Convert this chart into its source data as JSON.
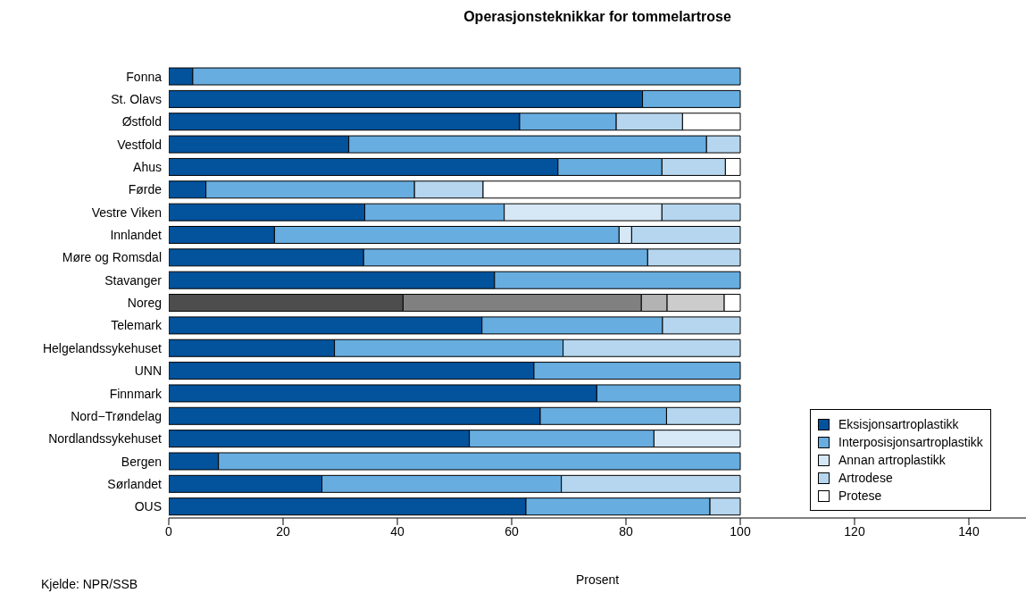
{
  "chart_data": {
    "type": "bar",
    "orientation": "horizontal",
    "stacked": true,
    "title": "Operasjonsteknikkar for tommelartrose",
    "xlabel": "Prosent",
    "annotations": [
      "Kjelde: NPR/SSB"
    ],
    "categories": [
      "Fonna",
      "St. Olavs",
      "Østfold",
      "Vestfold",
      "Ahus",
      "Førde",
      "Vestre Viken",
      "Innlandet",
      "Møre og Romsdal",
      "Stavanger",
      "Noreg",
      "Telemark",
      "Helgelandssykehuset",
      "UNN",
      "Finnmark",
      "Nord−Trøndelag",
      "Nordlandssykehuset",
      "Bergen",
      "Sørlandet",
      "OUS"
    ],
    "series": [
      {
        "name": "Eksisjonsartroplastikk",
        "color": "#02529c",
        "colors": [
          "#02529c",
          "#02529c",
          "#02529c",
          "#02529c",
          "#02529c",
          "#02529c",
          "#02529c",
          "#02529c",
          "#02529c",
          "#02529c",
          "#4d4d4d",
          "#02529c",
          "#02529c",
          "#02529c",
          "#02529c",
          "#02529c",
          "#02529c",
          "#02529c",
          "#02529c",
          "#02529c"
        ],
        "values": [
          4.2,
          82.9,
          61.4,
          31.5,
          68.1,
          6.5,
          34.3,
          18.5,
          34.1,
          57.0,
          41.0,
          54.8,
          29.0,
          63.9,
          74.9,
          65.0,
          52.6,
          8.7,
          26.8,
          62.5
        ]
      },
      {
        "name": "Interposisjonsartroplastikk",
        "color": "#67ade0",
        "colors": [
          "#67ade0",
          "#67ade0",
          "#67ade0",
          "#67ade0",
          "#67ade0",
          "#67ade0",
          "#67ade0",
          "#67ade0",
          "#67ade0",
          "#67ade0",
          "#808080",
          "#67ade0",
          "#67ade0",
          "#67ade0",
          "#67ade0",
          "#67ade0",
          "#67ade0",
          "#67ade0",
          "#67ade0",
          "#67ade0"
        ],
        "values": [
          95.8,
          17.1,
          16.9,
          62.6,
          18.2,
          36.5,
          24.4,
          60.3,
          49.7,
          43.0,
          41.7,
          31.6,
          40.0,
          36.1,
          25.1,
          22.1,
          32.3,
          91.3,
          41.9,
          32.2
        ]
      },
      {
        "name": "Annan artroplastikk",
        "color": "#d6e7f5",
        "colors": [
          "#d6e7f5",
          "#d6e7f5",
          "#d6e7f5",
          "#d6e7f5",
          "#d6e7f5",
          "#d6e7f5",
          "#d6e7f5",
          "#d6e7f5",
          "#d6e7f5",
          "#d6e7f5",
          "#b3b3b3",
          "#d6e7f5",
          "#d6e7f5",
          "#d6e7f5",
          "#d6e7f5",
          "#d6e7f5",
          "#d6e7f5",
          "#d6e7f5",
          "#d6e7f5",
          "#d6e7f5"
        ],
        "values": [
          null,
          null,
          null,
          null,
          null,
          null,
          27.6,
          2.2,
          null,
          null,
          4.5,
          null,
          null,
          null,
          null,
          null,
          15.1,
          null,
          null,
          null
        ]
      },
      {
        "name": "Artrodese",
        "color": "#b5d6ee",
        "colors": [
          "#b5d6ee",
          "#b5d6ee",
          "#b5d6ee",
          "#b5d6ee",
          "#b5d6ee",
          "#b5d6ee",
          "#b5d6ee",
          "#b5d6ee",
          "#b5d6ee",
          "#b5d6ee",
          "#cccccc",
          "#b5d6ee",
          "#b5d6ee",
          "#b5d6ee",
          "#b5d6ee",
          "#b5d6ee",
          "#b5d6ee",
          "#b5d6ee",
          "#b5d6ee",
          "#b5d6ee"
        ],
        "values": [
          null,
          null,
          11.6,
          5.9,
          11.1,
          12.0,
          13.7,
          19.0,
          16.2,
          null,
          10.0,
          13.6,
          31.0,
          null,
          null,
          12.9,
          null,
          null,
          31.3,
          5.3
        ]
      },
      {
        "name": "Protese",
        "color": "#ffffff",
        "colors": [
          "#ffffff",
          "#ffffff",
          "#ffffff",
          "#ffffff",
          "#ffffff",
          "#ffffff",
          "#ffffff",
          "#ffffff",
          "#ffffff",
          "#ffffff",
          "#ffffff",
          "#ffffff",
          "#ffffff",
          "#ffffff",
          "#ffffff",
          "#ffffff",
          "#ffffff",
          "#ffffff",
          "#ffffff",
          "#ffffff"
        ],
        "values": [
          null,
          null,
          10.1,
          null,
          2.6,
          45.0,
          null,
          null,
          null,
          null,
          2.8,
          null,
          null,
          null,
          null,
          null,
          null,
          null,
          null,
          null
        ]
      }
    ],
    "xlim": [
      0,
      150
    ],
    "xticks": [
      0,
      20,
      40,
      60,
      80,
      100,
      120,
      140
    ],
    "legend": "bottom right"
  }
}
